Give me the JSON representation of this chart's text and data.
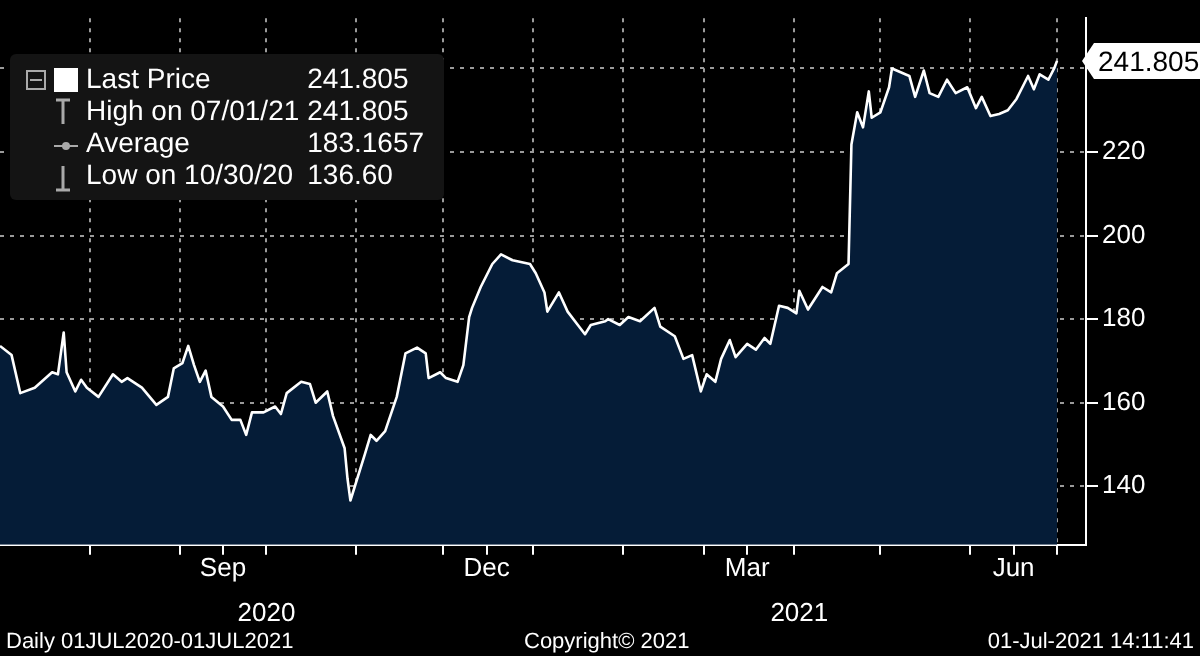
{
  "chart_data": {
    "type": "area",
    "legend": "top left",
    "grid": true,
    "xlim": [
      "2020-07-01",
      "2021-07-11"
    ],
    "xticks": [
      {
        "value": "2020-08-01",
        "label": null
      },
      {
        "value": "2020-09-01",
        "label": null
      },
      {
        "value": "2020-09-16",
        "label": "Sep"
      },
      {
        "value": "2020-10-01",
        "label": null
      },
      {
        "value": "2020-11-01",
        "label": null
      },
      {
        "value": "2020-12-01",
        "label": null
      },
      {
        "value": "2020-12-16",
        "label": "Dec"
      },
      {
        "value": "2021-01-01",
        "label": null
      },
      {
        "value": "2021-02-01",
        "label": null
      },
      {
        "value": "2021-03-01",
        "label": null
      },
      {
        "value": "2021-03-16",
        "label": "Mar"
      },
      {
        "value": "2021-04-01",
        "label": null
      },
      {
        "value": "2021-05-01",
        "label": null
      },
      {
        "value": "2021-06-01",
        "label": null
      },
      {
        "value": "2021-06-16",
        "label": "Jun"
      },
      {
        "value": "2021-07-01",
        "label": null
      }
    ],
    "x2lim": [
      "2020-07-01",
      "2021-07-11"
    ],
    "x2ticks": [
      {
        "value": "2020-10-01",
        "label": "2020"
      },
      {
        "value": "2021-04-03",
        "label": "2021"
      }
    ],
    "ylim": [
      126,
      252
    ],
    "yticks": [
      140,
      160,
      180,
      200,
      220,
      {
        "value": 240,
        "label": null
      }
    ],
    "x": [
      "2020-07-01",
      "2020-07-05",
      "2020-07-08",
      "2020-07-13",
      "2020-07-19",
      "2020-07-21",
      "2020-07-23",
      "2020-07-24",
      "2020-07-27",
      "2020-07-29",
      "2020-07-31",
      "2020-08-04",
      "2020-08-09",
      "2020-08-12",
      "2020-08-14",
      "2020-08-19",
      "2020-08-24",
      "2020-08-28",
      "2020-08-30",
      "2020-09-02",
      "2020-09-04",
      "2020-09-06",
      "2020-09-08",
      "2020-09-10",
      "2020-09-12",
      "2020-09-16",
      "2020-09-19",
      "2020-09-22",
      "2020-09-24",
      "2020-09-26",
      "2020-09-30",
      "2020-10-04",
      "2020-10-06",
      "2020-10-08",
      "2020-10-13",
      "2020-10-16",
      "2020-10-18",
      "2020-10-22",
      "2020-10-24",
      "2020-10-28",
      "2020-10-29",
      "2020-10-30",
      "2020-11-04",
      "2020-11-06",
      "2020-11-08",
      "2020-11-11",
      "2020-11-15",
      "2020-11-18",
      "2020-11-22",
      "2020-11-25",
      "2020-11-26",
      "2020-11-30",
      "2020-12-02",
      "2020-12-06",
      "2020-12-08",
      "2020-12-10",
      "2020-12-11",
      "2020-12-14",
      "2020-12-18",
      "2020-12-21",
      "2020-12-25",
      "2020-12-31",
      "2021-01-02",
      "2021-01-05",
      "2021-01-06",
      "2021-01-10",
      "2021-01-13",
      "2021-01-17",
      "2021-01-19",
      "2021-01-21",
      "2021-01-26",
      "2021-01-27",
      "2021-01-31",
      "2021-02-03",
      "2021-02-07",
      "2021-02-12",
      "2021-02-14",
      "2021-02-19",
      "2021-02-22",
      "2021-02-25",
      "2021-02-28",
      "2021-03-02",
      "2021-03-05",
      "2021-03-07",
      "2021-03-10",
      "2021-03-12",
      "2021-03-16",
      "2021-03-19",
      "2021-03-22",
      "2021-03-24",
      "2021-03-27",
      "2021-03-30",
      "2021-04-02",
      "2021-04-03",
      "2021-04-06",
      "2021-04-11",
      "2021-04-14",
      "2021-04-16",
      "2021-04-20",
      "2021-04-21",
      "2021-04-23",
      "2021-04-25",
      "2021-04-27",
      "2021-04-28",
      "2021-05-01",
      "2021-05-04",
      "2021-05-05",
      "2021-05-08",
      "2021-05-11",
      "2021-05-13",
      "2021-05-16",
      "2021-05-18",
      "2021-05-21",
      "2021-05-24",
      "2021-05-27",
      "2021-05-31",
      "2021-06-03",
      "2021-06-05",
      "2021-06-08",
      "2021-06-11",
      "2021-06-14",
      "2021-06-17",
      "2021-06-21",
      "2021-06-23",
      "2021-06-25",
      "2021-06-28",
      "2021-06-30",
      "2021-07-01"
    ],
    "series": [
      {
        "name": "Last Price",
        "color": "#ffffff",
        "values": [
          173.6,
          171.4,
          162.3,
          163.6,
          167.3,
          166.8,
          176.8,
          167.3,
          162.7,
          165.5,
          163.6,
          161.4,
          166.8,
          165,
          165.9,
          163.6,
          159.5,
          161.4,
          168.2,
          169.5,
          173.6,
          169,
          165,
          167.7,
          161.4,
          159.1,
          155.9,
          155.9,
          152.3,
          157.7,
          157.7,
          159.1,
          157.3,
          162.3,
          165,
          164.5,
          160,
          162.7,
          156.8,
          149.1,
          141.8,
          136.6,
          147.7,
          152.3,
          150.9,
          153.2,
          161.4,
          171.8,
          173.2,
          171.8,
          165.9,
          167.3,
          165.9,
          165,
          169,
          180.5,
          182.7,
          187.7,
          193.2,
          195.5,
          194.1,
          193.2,
          191,
          186.4,
          181.8,
          186.4,
          181.8,
          178.2,
          176.4,
          178.6,
          179.5,
          180,
          178.6,
          180.5,
          179.5,
          182.7,
          178.2,
          175.9,
          170.5,
          171.4,
          162.7,
          166.8,
          165,
          170.5,
          175,
          170.9,
          174.1,
          172.7,
          175.5,
          174.1,
          183.2,
          182.7,
          181.4,
          186.8,
          182.3,
          187.7,
          186.4,
          191,
          193.2,
          221.8,
          229.5,
          225.9,
          234.5,
          228.2,
          229.5,
          235.5,
          240,
          239.1,
          238.2,
          233.2,
          239.5,
          234.1,
          233.2,
          237.3,
          234.1,
          235.5,
          230.5,
          233.2,
          228.6,
          229.1,
          230,
          232.7,
          238.2,
          235,
          238.6,
          237.3,
          240,
          241.805
        ]
      }
    ],
    "annotations": [
      "241.805",
      "High on 07/01/21",
      "241.805",
      "Average",
      "183.1657",
      "Low on 10/30/20",
      "136.60",
      {
        "text": "241.805",
        "x": "2021-07-01",
        "y": 241.805
      },
      "Daily 01JUL2020-01JUL2021",
      "Copyright© 2021",
      "01-Jul-2021 14:11:41"
    ]
  }
}
